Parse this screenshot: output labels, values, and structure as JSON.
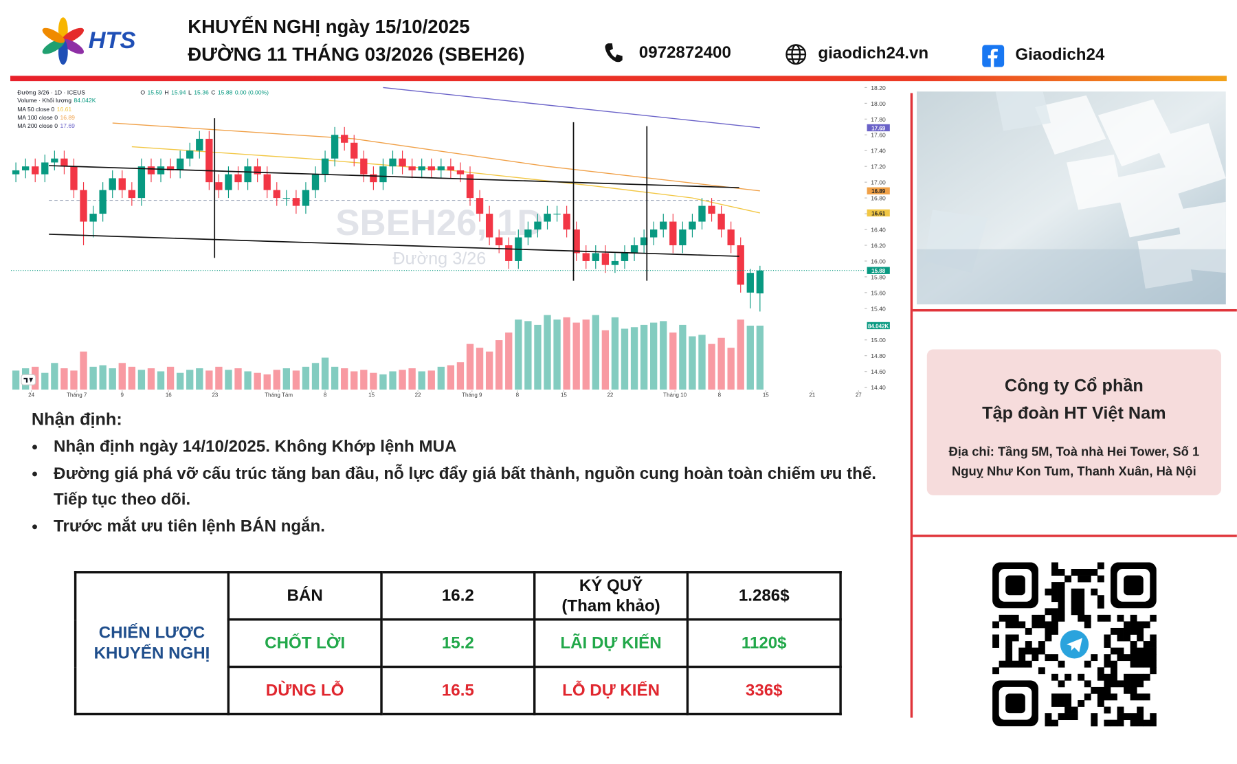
{
  "header": {
    "logo": "HTS",
    "title": "KHUYẾN NGHỊ ngày 15/10/2025",
    "subtitle": "ĐƯỜNG 11 THÁNG 03/2026 (SBEH26)",
    "phone": "0972872400",
    "website": "giaodich24.vn",
    "facebook": "Giaodich24"
  },
  "chart_data": {
    "type": "candlestick",
    "symbol": "Đường 3/26 · 1D · ICEUS",
    "watermark": "SBEH26, 1D",
    "watermark_subtitle": "Đường 3/26",
    "ohlc_legend": {
      "labels": [
        "O",
        "H",
        "L",
        "C"
      ],
      "change": "0.00 (0.00%)"
    },
    "xlim": [
      -0.5,
      87.5
    ],
    "ylim": [
      14.24,
      18.23
    ],
    "xticks": [
      {
        "value": 1.6,
        "label": "24"
      },
      {
        "value": 6.3,
        "label": "Tháng 7"
      },
      {
        "value": 11.0,
        "label": "9"
      },
      {
        "value": 15.8,
        "label": "16"
      },
      {
        "value": 20.6,
        "label": "23"
      },
      {
        "value": 27.2,
        "label": "Tháng Tám"
      },
      {
        "value": 32.0,
        "label": "8"
      },
      {
        "value": 36.8,
        "label": "15"
      },
      {
        "value": 41.6,
        "label": "22"
      },
      {
        "value": 47.2,
        "label": "Tháng 9"
      },
      {
        "value": 51.9,
        "label": "8"
      },
      {
        "value": 56.7,
        "label": "15"
      },
      {
        "value": 61.5,
        "label": "22"
      },
      {
        "value": 68.2,
        "label": "Tháng 10"
      },
      {
        "value": 72.8,
        "label": "8"
      },
      {
        "value": 77.6,
        "label": "15"
      },
      {
        "value": 82.4,
        "label": "21"
      },
      {
        "value": 87.2,
        "label": "27"
      }
    ],
    "yticks": [
      {
        "value": 18.2,
        "label": "18.20"
      },
      {
        "value": 18.0,
        "label": "18.00"
      },
      {
        "value": 17.8,
        "label": "17.80"
      },
      {
        "value": 17.6,
        "label": "17.60"
      },
      {
        "value": 17.4,
        "label": "17.40"
      },
      {
        "value": 17.2,
        "label": "17.20"
      },
      {
        "value": 17.0,
        "label": "17.00"
      },
      {
        "value": 16.8,
        "label": "16.80"
      },
      {
        "value": 16.6,
        "label": "16.60"
      },
      {
        "value": 16.4,
        "label": "16.40"
      },
      {
        "value": 16.2,
        "label": "16.20"
      },
      {
        "value": 16.0,
        "label": "16.00"
      },
      {
        "value": 15.8,
        "label": "15.80"
      },
      {
        "value": 15.6,
        "label": "15.60"
      },
      {
        "value": 15.4,
        "label": "15.40"
      },
      {
        "value": 15.0,
        "label": "15.00"
      },
      {
        "value": 14.8,
        "label": "14.80"
      },
      {
        "value": 14.6,
        "label": "14.60"
      },
      {
        "value": 14.4,
        "label": "14.40"
      }
    ],
    "up_color": "#089981",
    "down_color": "#f23645",
    "open": [
      17.1,
      17.15,
      17.2,
      17.1,
      17.25,
      17.3,
      17.2,
      16.9,
      16.5,
      16.6,
      16.9,
      17.05,
      16.9,
      16.8,
      17.2,
      17.1,
      17.2,
      17.15,
      17.3,
      17.4,
      17.55,
      17.0,
      16.9,
      17.1,
      17.0,
      17.2,
      17.1,
      16.9,
      16.8,
      16.8,
      16.7,
      16.9,
      17.1,
      17.3,
      17.6,
      17.5,
      17.3,
      17.1,
      17.0,
      17.2,
      17.3,
      17.2,
      17.15,
      17.2,
      17.15,
      17.2,
      17.15,
      17.1,
      16.8,
      16.6,
      16.3,
      16.2,
      16.0,
      16.3,
      16.4,
      16.5,
      16.6,
      16.6,
      16.4,
      16.1,
      16.0,
      16.1,
      15.95,
      16.0,
      16.1,
      16.2,
      16.3,
      16.4,
      16.5,
      16.2,
      16.4,
      16.5,
      16.7,
      16.6,
      16.4,
      16.2,
      15.6,
      15.59
    ],
    "high": [
      17.25,
      17.3,
      17.3,
      17.35,
      17.4,
      17.4,
      17.3,
      17.0,
      16.7,
      17.0,
      17.15,
      17.15,
      17.0,
      17.3,
      17.3,
      17.3,
      17.3,
      17.4,
      17.5,
      17.65,
      17.65,
      17.1,
      17.2,
      17.2,
      17.3,
      17.3,
      17.2,
      17.0,
      16.9,
      16.9,
      17.0,
      17.2,
      17.4,
      17.7,
      17.7,
      17.6,
      17.4,
      17.2,
      17.3,
      17.4,
      17.4,
      17.3,
      17.3,
      17.3,
      17.3,
      17.3,
      17.25,
      17.2,
      16.9,
      16.7,
      16.4,
      16.3,
      16.4,
      16.5,
      16.6,
      16.7,
      16.7,
      16.7,
      16.5,
      16.2,
      16.2,
      16.2,
      16.1,
      16.2,
      16.3,
      16.4,
      16.5,
      16.6,
      16.6,
      16.5,
      16.6,
      16.8,
      16.8,
      16.7,
      16.5,
      16.3,
      15.9,
      15.94
    ],
    "low": [
      17.0,
      17.05,
      17.0,
      17.0,
      17.15,
      17.1,
      16.8,
      16.2,
      16.3,
      16.5,
      16.8,
      16.8,
      16.7,
      16.7,
      17.0,
      17.0,
      17.05,
      17.05,
      17.2,
      17.3,
      16.9,
      16.8,
      16.8,
      16.9,
      16.9,
      17.0,
      16.8,
      16.7,
      16.7,
      16.6,
      16.6,
      16.8,
      17.0,
      17.2,
      17.4,
      17.2,
      17.0,
      16.9,
      16.9,
      17.1,
      17.1,
      17.05,
      17.05,
      17.05,
      17.05,
      17.05,
      17.0,
      16.7,
      16.5,
      16.2,
      16.1,
      15.9,
      15.9,
      16.2,
      16.3,
      16.4,
      16.5,
      16.3,
      16.0,
      15.9,
      15.9,
      15.85,
      15.85,
      15.9,
      16.0,
      16.1,
      16.2,
      16.3,
      16.1,
      16.1,
      16.3,
      16.4,
      16.5,
      16.3,
      16.1,
      15.6,
      15.4,
      15.36
    ],
    "close": [
      17.15,
      17.2,
      17.1,
      17.25,
      17.3,
      17.2,
      16.9,
      16.5,
      16.6,
      16.9,
      17.05,
      16.9,
      16.8,
      17.2,
      17.1,
      17.2,
      17.15,
      17.3,
      17.4,
      17.55,
      17.0,
      16.9,
      17.1,
      17.0,
      17.2,
      17.1,
      16.9,
      16.8,
      16.8,
      16.7,
      16.9,
      17.1,
      17.3,
      17.6,
      17.5,
      17.3,
      17.1,
      17.0,
      17.2,
      17.3,
      17.2,
      17.15,
      17.2,
      17.15,
      17.2,
      17.15,
      17.1,
      16.8,
      16.6,
      16.3,
      16.2,
      16.0,
      16.3,
      16.4,
      16.5,
      16.6,
      16.6,
      16.4,
      16.1,
      16.0,
      16.1,
      15.95,
      16.0,
      16.1,
      16.2,
      16.3,
      16.4,
      16.5,
      16.2,
      16.4,
      16.5,
      16.7,
      16.6,
      16.4,
      16.2,
      15.7,
      15.85,
      15.88
    ],
    "volume": {
      "name": "Volume · Khối lượng",
      "values": [
        25,
        28,
        30,
        22,
        35,
        28,
        25,
        50,
        30,
        32,
        28,
        35,
        30,
        26,
        28,
        24,
        30,
        22,
        26,
        28,
        25,
        30,
        26,
        28,
        24,
        22,
        20,
        26,
        28,
        25,
        30,
        35,
        42,
        30,
        28,
        24,
        26,
        22,
        20,
        24,
        26,
        28,
        24,
        25,
        30,
        32,
        36,
        60,
        55,
        50,
        65,
        75,
        92,
        90,
        85,
        98,
        92,
        95,
        88,
        92,
        98,
        78,
        95,
        80,
        82,
        85,
        88,
        90,
        75,
        85,
        70,
        72,
        60,
        68,
        55,
        92,
        84,
        84.042
      ],
      "last_label": "84.042K"
    },
    "moving_averages": [
      {
        "name": "MA 50 close 0",
        "color": "#f2c744",
        "x": [
          12,
          30,
          45,
          60,
          70,
          77
        ],
        "values": [
          17.45,
          17.3,
          17.15,
          16.95,
          16.8,
          16.61
        ]
      },
      {
        "name": "MA 100 close 0",
        "color": "#f0a047",
        "x": [
          10,
          35,
          55,
          77
        ],
        "values": [
          17.75,
          17.55,
          17.2,
          16.89
        ]
      },
      {
        "name": "MA 200 close 0",
        "color": "#6a62c8",
        "x": [
          38,
          77
        ],
        "values": [
          18.2,
          17.69
        ]
      }
    ]
  },
  "analysis": {
    "heading": "Nhận định:",
    "bullets": [
      "Nhận định ngày 14/10/2025. Không Khớp lệnh MUA",
      "Đường giá phá vỡ cấu trúc tăng ban đầu, nỗ lực đẩy giá bất thành, nguồn cung hoàn toàn chiếm ưu thế. Tiếp tục theo dõi.",
      "Trước mắt ưu tiên lệnh BÁN ngắn."
    ]
  },
  "table": {
    "strategy": "CHIẾN LƯỢC\nKHUYẾN NGHỊ",
    "rows": [
      [
        "BÁN",
        16.2,
        "KÝ QUỸ\n(Tham khảo)",
        "1.286$"
      ],
      [
        "CHỐT LỜI",
        15.2,
        "LÃI DỰ KIẾN",
        "1120$"
      ],
      [
        "DỪNG LỖ",
        16.5,
        "LỖ DỰ KIẾN",
        "336$"
      ]
    ]
  },
  "company": {
    "name": "Công ty Cổ phần\nTập đoàn HT Việt Nam",
    "address": "Địa chỉ: Tầng 5M, Toà nhà Hei Tower, Số 1 Nguỵ Như Kon Tum, Thanh Xuân, Hà Nội"
  }
}
